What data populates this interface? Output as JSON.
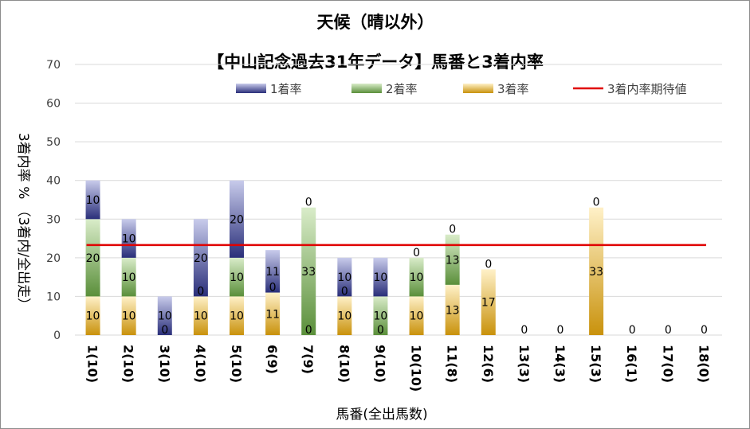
{
  "chart_data": {
    "type": "bar",
    "stacked": true,
    "title": "天候（晴以外）",
    "subtitle": "【中山記念過去31年データ】馬番と3着内率",
    "xlabel": "馬番(全出馬数)",
    "ylabel": "3着内率 %  （3着内/全出走）",
    "ylim": [
      0,
      70
    ],
    "yticks": [
      "0",
      "10",
      "20",
      "30",
      "40",
      "50",
      "60",
      "70"
    ],
    "grid": true,
    "legend_position": "top",
    "categories": [
      "1(10)",
      "2(10)",
      "3(10)",
      "4(10)",
      "5(10)",
      "6(9)",
      "7(9)",
      "8(10)",
      "9(10)",
      "10(10)",
      "11(8)",
      "12(6)",
      "13(3)",
      "14(3)",
      "15(3)",
      "16(1)",
      "17(0)",
      "18(0)"
    ],
    "series": [
      {
        "name": "3着率",
        "color": "#c9920c",
        "values": [
          10,
          10,
          0,
          10,
          10,
          11,
          0,
          10,
          0,
          10,
          13,
          17,
          0,
          0,
          33,
          0,
          0,
          0
        ]
      },
      {
        "name": "2着率",
        "color": "#5a8f3a",
        "values": [
          20,
          10,
          0,
          0,
          10,
          0,
          33,
          0,
          10,
          10,
          13,
          0,
          0,
          0,
          0,
          0,
          0,
          0
        ]
      },
      {
        "name": "1着率",
        "color": "#2a2f7a",
        "values": [
          10,
          10,
          10,
          20,
          20,
          11,
          0,
          10,
          10,
          0,
          0,
          0,
          0,
          0,
          0,
          0,
          0,
          0
        ]
      }
    ],
    "data_labels": [
      {
        "series": "3着率",
        "values": [
          "10",
          "10",
          "0",
          "10",
          "10",
          "11",
          "0",
          "10",
          "0",
          "10",
          "13",
          "17",
          "0",
          "0",
          "33",
          "0",
          "0",
          "0"
        ]
      },
      {
        "series": "2着率",
        "values": [
          "20",
          "10",
          "",
          "0",
          "10",
          "0",
          "33",
          "0",
          "10",
          "10",
          "13",
          "",
          "",
          "",
          "",
          "",
          "",
          ""
        ]
      },
      {
        "series": "1着率",
        "values": [
          "10",
          "10",
          "10",
          "20",
          "20",
          "11",
          "0",
          "10",
          "10",
          "0",
          "0",
          "0",
          "",
          "",
          "0",
          "",
          "",
          ""
        ]
      }
    ],
    "reference_line": {
      "name": "3着内率期待値",
      "value": 23.3,
      "color": "#e00000"
    },
    "legend": [
      "1着率",
      "2着率",
      "3着率",
      "3着内率期待値"
    ]
  }
}
